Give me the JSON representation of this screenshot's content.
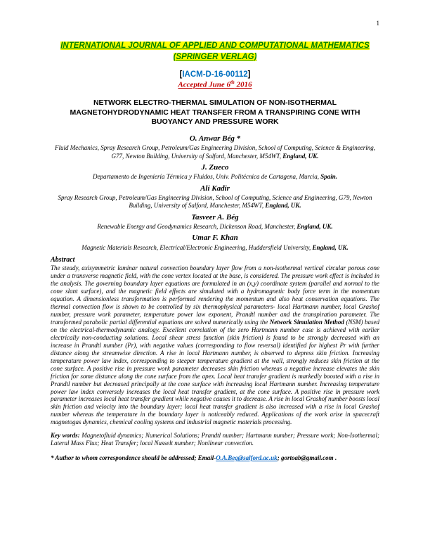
{
  "page_number": "1",
  "journal": {
    "line1": "INTERNATIONAL JOURNAL OF APPLIED AND COMPUTATIONAL MATHEMATICS",
    "line2": "(SPRINGER VERLAG)"
  },
  "reference": {
    "open": "[",
    "code": "IACM-D-16-00112",
    "close": "]"
  },
  "accepted": {
    "prefix": "Accepted June 6",
    "sup": "th",
    "year": " 2016"
  },
  "title": "NETWORK ELECTRO-THERMAL SIMULATION OF NON-ISOTHERMAL MAGNETOHYDRODYNAMIC HEAT TRANSFER FROM A TRANSPIRING CONE WITH BUOYANCY AND PRESSURE WORK",
  "authors": [
    {
      "name": "O. Anwar Bég *",
      "affil_pre": "Fluid Mechanics, Spray Research Group, Petroleum/Gas Engineering Division, School of Computing, Science & Engineering, G77, Newton Building, University of Salford, Manchester, M54WT, ",
      "affil_loc": "England, UK."
    },
    {
      "name": "J. Zueco",
      "affil_pre": "Departamento de Ingeniería Térmica y Fluidos, Univ. Politécnica de Cartagena, Murcia, ",
      "affil_loc": "Spain."
    },
    {
      "name": "Ali Kadir",
      "affil_pre": "Spray Research Group, Petroleum/Gas Engineering Division, School of Computing, Science and Engineering, G79, Newton Building, University of Salford, Manchester, M54WT, ",
      "affil_loc": "England, UK."
    },
    {
      "name": "Tasveer A. Bég",
      "affil_pre": "Renewable Energy and Geodynamics Research, Dickenson Road, Manchester, ",
      "affil_loc": "England, UK."
    },
    {
      "name": "Umar F. Khan",
      "affil_pre": "Magnetic Materials Research, Electrical/Electronic Engineering, Huddersfield University, ",
      "affil_loc": "England, UK."
    }
  ],
  "abstract": {
    "heading": "Abstract",
    "part1": "The steady, axisymmetric laminar natural convection boundary layer flow from a non-isothermal vertical circular porous cone under a transverse magnetic field, with the cone vertex located at the base, is considered. The pressure work effect is included in the analysis. The governing boundary layer equations are formulated in an (x,y) coordinate system (parallel and normal to the cone slant surface), and the magnetic field effects are simulated with  a hydromagnetic body force term in the momentum equation. A dimensionless transformation is performed rendering the momentum and also heat conservation equations. The thermal convection flow is shown to be controlled by six thermophysical parameters- local Hartmann number, local Grashof number, pressure work parameter, temperature power law exponent, Prandtl number and the transpiration  parameter. The transformed parabolic partial differential equations are solved numerically using the ",
    "nsm": "Network Simulation Method",
    "nsm_abbr": " (NSM)",
    "part2": " based on the electrical-thermodynamic analogy. Excellent correlation of the zero Hartmann number case is achieved with earlier electrically non-conducting solutions. Local shear stress function (skin friction) is found to be strongly decreased with an increase in Prandtl number (Pr), with negative values (corresponding to flow reversal) identified for highest Pr with further distance along the streamwise direction. A rise in local Hartmann number, is observed to depress skin friction.  Increasing temperature power law index, corresponding to steeper temperature gradient at the wall, strongly reduces skin friction at the cone surface. A positive rise in pressure work parameter decreases skin friction whereas a negative increase elevates the skin friction for some distance along the cone surface from the apex. Local heat transfer gradient is markedly boosted with a rise in Prandtl number but decreased principally at the cone surface with increasing local Hartmann number. Increasing temperature power law index conversely increases the local heat transfer gradient, at the cone surface. A positive rise in pressure work parameter increases local heat transfer gradient while negative causes it to decrease.  A rise in local Grashof number boosts local skin friction and velocity into the boundary layer; local heat transfer gradient is also increased with a rise in local Grashof number whereas the temperature in the boundary layer is noticeably reduced. Applications of the work arise in spacecraft magnetogas dynamics, chemical cooling systems and industrial magnetic materials processing."
  },
  "keywords": {
    "label": "Key words:",
    "text": " Magnetofluid dynamics; Numerical Solutions; Prandtl number;  Hartmann number; Pressure work; Non-Isothermal; Lateral Mass Flux; Heat Transfer; local Nusselt number; Nonlinear convection."
  },
  "corr": {
    "prefix": "* Author to whom correspondence should be addressed; Email-",
    "email1": "O.A.Beg@salford.ac.uk",
    "mid": ";  ",
    "email2": "gortoab@gmail.com",
    "suffix": " ."
  }
}
